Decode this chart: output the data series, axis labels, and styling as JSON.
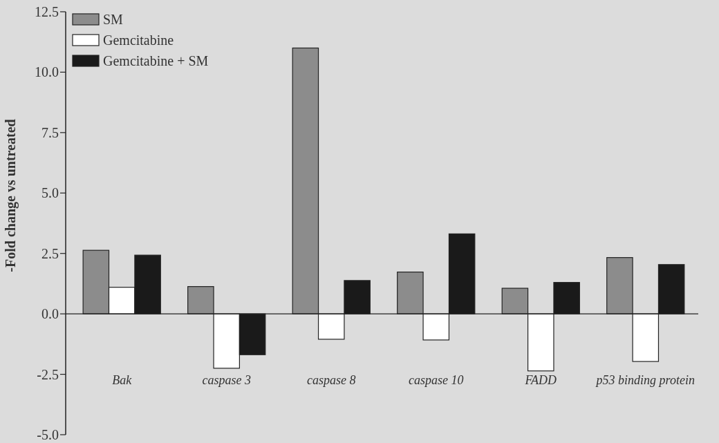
{
  "chart_data": {
    "type": "bar",
    "ylabel": "-Fold change vs untreated",
    "categories": [
      "Bak",
      "caspase 3",
      "caspase 8",
      "caspase 10",
      "FADD",
      "p53 binding protein"
    ],
    "series": [
      {
        "name": "SM",
        "color": "#8c8c8c",
        "values": [
          2.63,
          1.13,
          11.0,
          1.73,
          1.06,
          2.33
        ]
      },
      {
        "name": "Gemcitabine",
        "color": "#ffffff",
        "values": [
          1.1,
          -2.25,
          -1.05,
          -1.08,
          -2.36,
          -1.97
        ]
      },
      {
        "name": "Gemcitabine + SM",
        "color": "#1a1a1a",
        "values": [
          2.43,
          -1.69,
          1.38,
          3.31,
          1.3,
          2.04
        ]
      }
    ],
    "ylim": [
      -5,
      12.5
    ],
    "yticks": [
      {
        "value": -5,
        "label": "-5.0"
      },
      {
        "value": -2.5,
        "label": "-2.5"
      },
      {
        "value": 0,
        "label": "0.0"
      },
      {
        "value": 2.5,
        "label": "2.5"
      },
      {
        "value": 5,
        "label": "5.0"
      },
      {
        "value": 7.5,
        "label": "7.5"
      },
      {
        "value": 10,
        "label": "10.0"
      },
      {
        "value": 12.5,
        "label": "12.5"
      }
    ],
    "legend": "top left"
  }
}
